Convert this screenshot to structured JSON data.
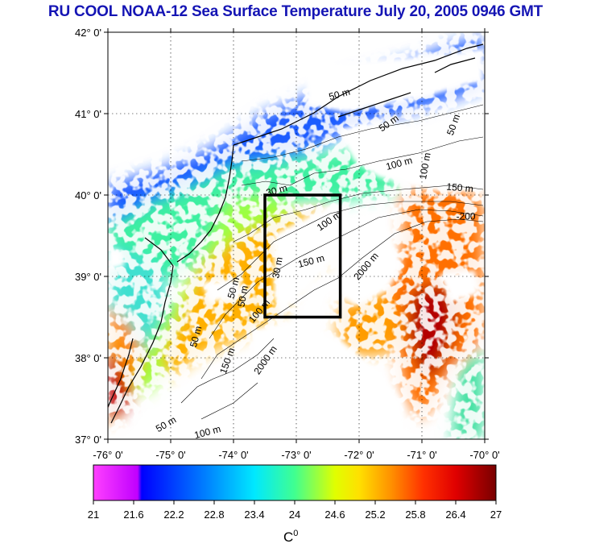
{
  "title": "RU COOL  NOAA-12 Sea Surface Temperature July 20, 2005 0946 GMT",
  "map": {
    "lon_range": [
      -76,
      -70
    ],
    "lat_range": [
      37,
      42
    ],
    "lat_ticks": [
      "37° 0'",
      "38° 0'",
      "39° 0'",
      "40° 0'",
      "41° 0'",
      "42° 0'"
    ],
    "lon_ticks": [
      "-76° 0'",
      "-75° 0'",
      "-74° 0'",
      "-73° 0'",
      "-72° 0'",
      "-71° 0'",
      "-70° 0'"
    ],
    "box": {
      "lon": [
        -73.5,
        -72.3
      ],
      "lat": [
        38.5,
        40.0
      ]
    },
    "contour_labels": [
      {
        "text": "50 m",
        "lon": -72.3,
        "lat": 41.2,
        "rot": -15
      },
      {
        "text": "50 m",
        "lon": -71.5,
        "lat": 40.85,
        "rot": -35
      },
      {
        "text": "50 m",
        "lon": -70.45,
        "lat": 40.85,
        "rot": -70
      },
      {
        "text": "100 m",
        "lon": -71.35,
        "lat": 40.35,
        "rot": -15
      },
      {
        "text": "100 m",
        "lon": -70.9,
        "lat": 40.35,
        "rot": -80
      },
      {
        "text": "150 m",
        "lon": -70.4,
        "lat": 40.05,
        "rot": 5
      },
      {
        "text": "-200",
        "lon": -70.3,
        "lat": 39.7,
        "rot": 0
      },
      {
        "text": "30 m",
        "lon": -73.3,
        "lat": 40.02,
        "rot": -15
      },
      {
        "text": "100 m",
        "lon": -72.45,
        "lat": 39.65,
        "rot": -35
      },
      {
        "text": "30 m",
        "lon": -73.25,
        "lat": 39.1,
        "rot": -80
      },
      {
        "text": "150 m",
        "lon": -72.75,
        "lat": 39.15,
        "rot": -15
      },
      {
        "text": "2000 m",
        "lon": -71.85,
        "lat": 39.1,
        "rot": -50
      },
      {
        "text": "50 m",
        "lon": -73.95,
        "lat": 38.85,
        "rot": -75
      },
      {
        "text": "50 m",
        "lon": -73.8,
        "lat": 38.75,
        "rot": -80
      },
      {
        "text": "100 m",
        "lon": -73.55,
        "lat": 38.55,
        "rot": -50
      },
      {
        "text": "50 m",
        "lon": -74.55,
        "lat": 38.25,
        "rot": -75
      },
      {
        "text": "150 m",
        "lon": -74.05,
        "lat": 37.95,
        "rot": -70
      },
      {
        "text": "2000 m",
        "lon": -73.45,
        "lat": 37.95,
        "rot": -55
      },
      {
        "text": "50 m",
        "lon": -75.05,
        "lat": 37.15,
        "rot": -30
      },
      {
        "text": "100 m",
        "lon": -74.4,
        "lat": 37.05,
        "rot": -15
      }
    ]
  },
  "colorbar": {
    "min": 21,
    "max": 27,
    "tick_labels": [
      "21",
      "21.6",
      "22.2",
      "22.8",
      "23.4",
      "24",
      "24.6",
      "25.2",
      "25.8",
      "26.4",
      "27"
    ],
    "unit_base": "C",
    "unit_sup": "0"
  },
  "colors": {
    "title": "#1414b4",
    "cold_shelf": "#1a5cff",
    "mid_shelf": "#3cf0a0",
    "slope_warm": "#ff8c00",
    "eddy_hot": "#b40000",
    "cloud": "#ffffff"
  }
}
